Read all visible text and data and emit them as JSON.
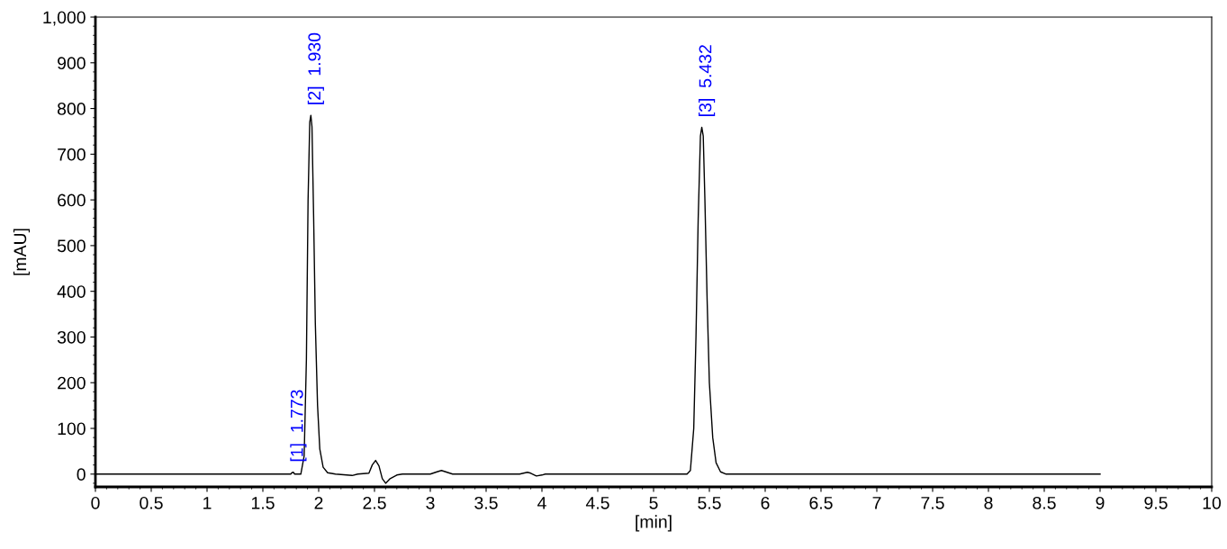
{
  "chart_data": {
    "type": "line",
    "xlabel": "[min]",
    "ylabel": "[mAU]",
    "xlim": [
      0,
      10
    ],
    "ylim": [
      -28,
      1000
    ],
    "xticks": [
      0,
      0.5,
      {
        "value": 1,
        "label": "1"
      },
      1.5,
      {
        "value": 2,
        "label": "2"
      },
      2.5,
      {
        "value": 3,
        "label": "3"
      },
      3.5,
      {
        "value": 4,
        "label": "4"
      },
      4.5,
      {
        "value": 5,
        "label": "5"
      },
      5.5,
      {
        "value": 6,
        "label": "6"
      },
      6.5,
      {
        "value": 7,
        "label": "7"
      },
      7.5,
      {
        "value": 8,
        "label": "8"
      },
      8.5,
      {
        "value": 9,
        "label": "9"
      },
      9.5,
      {
        "value": 10,
        "label": "10"
      }
    ],
    "yticks": [
      0,
      100,
      200,
      300,
      400,
      500,
      600,
      700,
      800,
      900,
      {
        "value": 1000,
        "label": "1,000"
      }
    ],
    "grid": false,
    "marker": "none",
    "line_style": "solid",
    "series": [
      {
        "color": "#000000",
        "x": [
          0,
          1.75,
          1.76,
          1.773,
          1.785,
          1.84,
          1.87,
          1.89,
          1.905,
          1.92,
          1.93,
          1.94,
          1.955,
          1.97,
          1.99,
          2.01,
          2.04,
          2.08,
          2.15,
          2.3,
          2.35,
          2.45,
          2.48,
          2.51,
          2.54,
          2.57,
          2.6,
          2.64,
          2.7,
          2.75,
          3.0,
          3.06,
          3.1,
          3.15,
          3.2,
          3.8,
          3.87,
          3.9,
          3.95,
          4.0,
          4.03,
          5.3,
          5.33,
          5.36,
          5.38,
          5.4,
          5.42,
          5.432,
          5.445,
          5.46,
          5.48,
          5.5,
          5.53,
          5.56,
          5.6,
          5.65,
          9.0
        ],
        "values": [
          0,
          0,
          3,
          4,
          0,
          0,
          40,
          250,
          600,
          770,
          785,
          760,
          560,
          330,
          150,
          55,
          15,
          3,
          0,
          -3,
          0,
          2,
          20,
          30,
          18,
          -10,
          -20,
          -10,
          -2,
          0,
          0,
          5,
          8,
          4,
          0,
          0,
          4,
          2,
          -4,
          -2,
          0,
          0,
          8,
          100,
          300,
          560,
          740,
          759,
          740,
          600,
          380,
          200,
          80,
          25,
          5,
          0,
          0
        ]
      }
    ],
    "annotations": [
      {
        "text": "[1]  1.773",
        "x": 1.773,
        "y": 4
      },
      {
        "text": "[2]  1.930",
        "x": 1.93,
        "y": 785
      },
      {
        "text": "[3]  5.432",
        "x": 5.432,
        "y": 759
      }
    ]
  }
}
